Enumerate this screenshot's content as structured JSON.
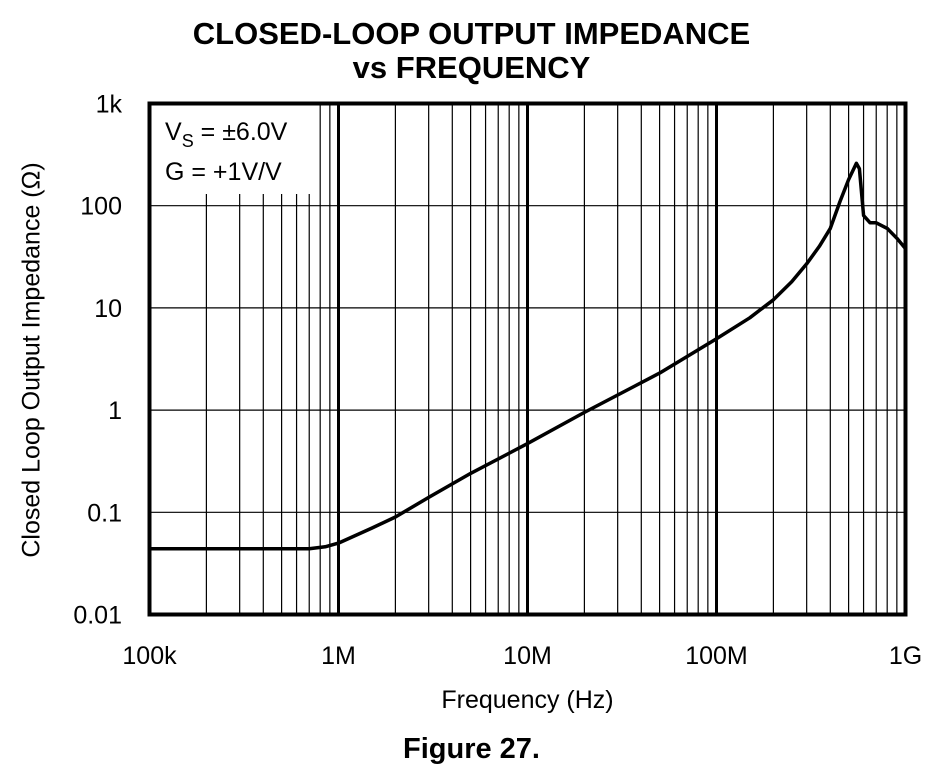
{
  "chart_data": {
    "type": "line",
    "title": "CLOSED-LOOP OUTPUT IMPEDANCE",
    "subtitle": "vs FREQUENCY",
    "xlabel": "Frequency (Hz)",
    "ylabel": "Closed Loop Output Impedance (Ω)",
    "xscale": "log",
    "yscale": "log",
    "xlim": [
      100000,
      1000000000
    ],
    "ylim": [
      0.01,
      1000
    ],
    "x_ticks": [
      {
        "value": 100000,
        "label": "100k"
      },
      {
        "value": 1000000,
        "label": "1M"
      },
      {
        "value": 10000000,
        "label": "10M"
      },
      {
        "value": 100000000,
        "label": "100M"
      },
      {
        "value": 1000000000,
        "label": "1G"
      }
    ],
    "y_ticks": [
      {
        "value": 1000,
        "label": "1k"
      },
      {
        "value": 100,
        "label": "100"
      },
      {
        "value": 10,
        "label": "10"
      },
      {
        "value": 1,
        "label": "1"
      },
      {
        "value": 0.1,
        "label": "0.1"
      },
      {
        "value": 0.01,
        "label": "0.01"
      }
    ],
    "grid": true,
    "annotations": {
      "vs_main": "V",
      "vs_sub": "S",
      "vs_rest": " = ±6.0V",
      "gain": "G = +1V/V"
    },
    "series": [
      {
        "color": "#000000",
        "points": [
          [
            100000,
            0.044
          ],
          [
            200000,
            0.044
          ],
          [
            500000,
            0.044
          ],
          [
            700000,
            0.044
          ],
          [
            850000,
            0.046
          ],
          [
            1000000,
            0.05
          ],
          [
            1500000,
            0.07
          ],
          [
            2000000,
            0.09
          ],
          [
            3000000,
            0.14
          ],
          [
            5000000,
            0.24
          ],
          [
            10000000,
            0.47
          ],
          [
            20000000,
            0.95
          ],
          [
            50000000,
            2.3
          ],
          [
            100000000,
            5.0
          ],
          [
            150000000,
            8.0
          ],
          [
            200000000,
            12
          ],
          [
            250000000,
            18
          ],
          [
            300000000,
            27
          ],
          [
            350000000,
            40
          ],
          [
            400000000,
            60
          ],
          [
            450000000,
            110
          ],
          [
            500000000,
            180
          ],
          [
            550000000,
            260
          ],
          [
            570000000,
            230
          ],
          [
            600000000,
            80
          ],
          [
            650000000,
            68
          ],
          [
            700000000,
            68
          ],
          [
            800000000,
            60
          ],
          [
            900000000,
            48
          ],
          [
            1000000000,
            38
          ]
        ]
      }
    ]
  },
  "caption": "Figure 27."
}
